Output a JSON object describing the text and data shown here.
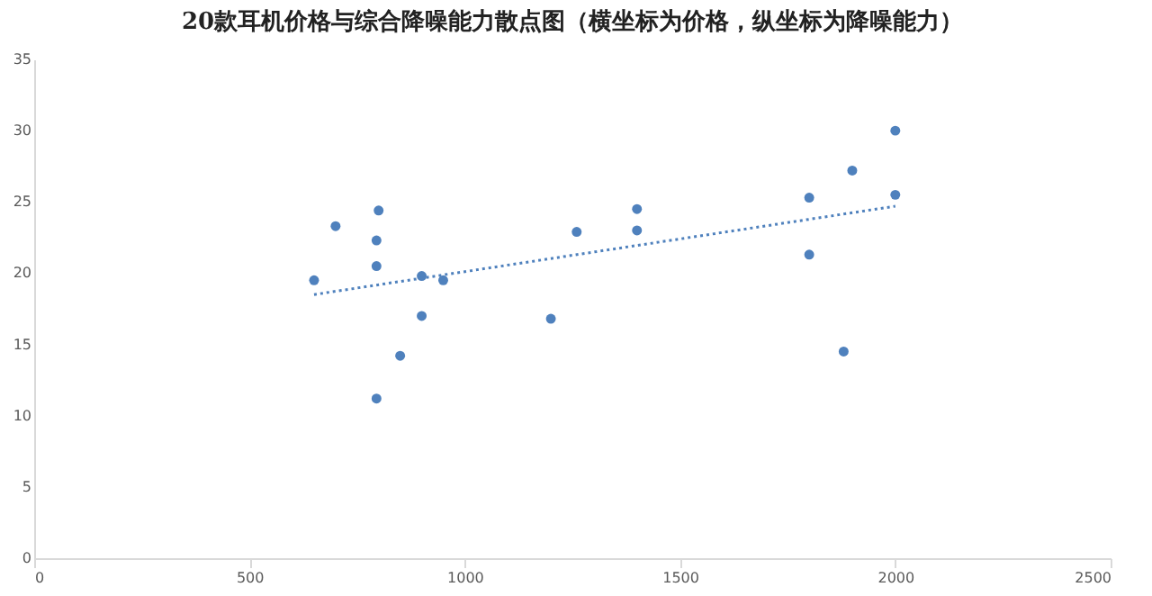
{
  "chart_data": {
    "type": "scatter",
    "title": "20款耳机价格与综合降噪能力散点图（横坐标为价格，纵坐标为降噪能力）",
    "xlim": [
      0,
      2500
    ],
    "xticks": [
      0,
      500,
      1000,
      1500,
      2000,
      2500
    ],
    "ylim": [
      0,
      35
    ],
    "yticks": [
      0,
      5,
      10,
      15,
      20,
      25,
      30,
      35
    ],
    "grid": false,
    "marker": "circle",
    "series": [
      {
        "color": "#4f81bd",
        "x": [
          650,
          700,
          800,
          795,
          795,
          900,
          950,
          900,
          850,
          795,
          1200,
          1260,
          1400,
          1400,
          1800,
          1800,
          1900,
          1880,
          2000,
          2000
        ],
        "values": [
          19.5,
          23.3,
          24.4,
          22.3,
          20.5,
          19.8,
          19.5,
          17.0,
          14.2,
          11.2,
          16.8,
          22.9,
          24.5,
          23.0,
          25.3,
          21.3,
          27.2,
          14.5,
          30.0,
          25.5
        ]
      },
      {
        "type": "line",
        "color": "#4f81bd",
        "line_style": "dotted",
        "marker": "none",
        "x": [
          650,
          2000
        ],
        "values": [
          18.5,
          24.7
        ]
      }
    ]
  }
}
